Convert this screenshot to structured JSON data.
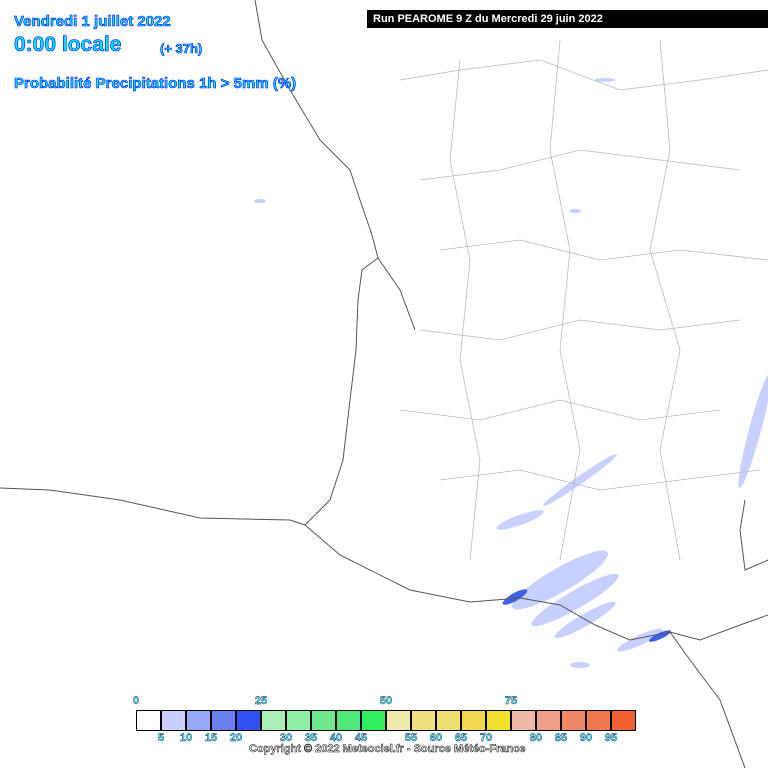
{
  "header": {
    "date": "Vendredi 1 juillet 2022",
    "time": "0:00 locale",
    "lead": "(+ 37h)",
    "parameter": "Probabilité Precipitations 1h > 5mm (%)",
    "run": "Run PEAROME 9 Z du Mercredi 29 juin 2022"
  },
  "legend": {
    "top_labels": [
      "0",
      "25",
      "50",
      "75"
    ],
    "bottom_labels": [
      "5",
      "10",
      "15",
      "20",
      "30",
      "35",
      "40",
      "45",
      "55",
      "60",
      "65",
      "70",
      "80",
      "85",
      "90",
      "95"
    ],
    "colors": [
      "#ffffff",
      "#c8d0ff",
      "#98a8f8",
      "#6880f0",
      "#3050f0",
      "#a8f0b8",
      "#90f0a8",
      "#70e890",
      "#50e878",
      "#30f060",
      "#f0e8a8",
      "#f0e080",
      "#f0e070",
      "#f0d850",
      "#f0e030",
      "#f0b8a8",
      "#f0a088",
      "#f08868",
      "#f07850",
      "#f06030"
    ]
  },
  "footer": {
    "copyright": "Copyright © 2022 Meteociel.fr - Source Météo-France"
  }
}
